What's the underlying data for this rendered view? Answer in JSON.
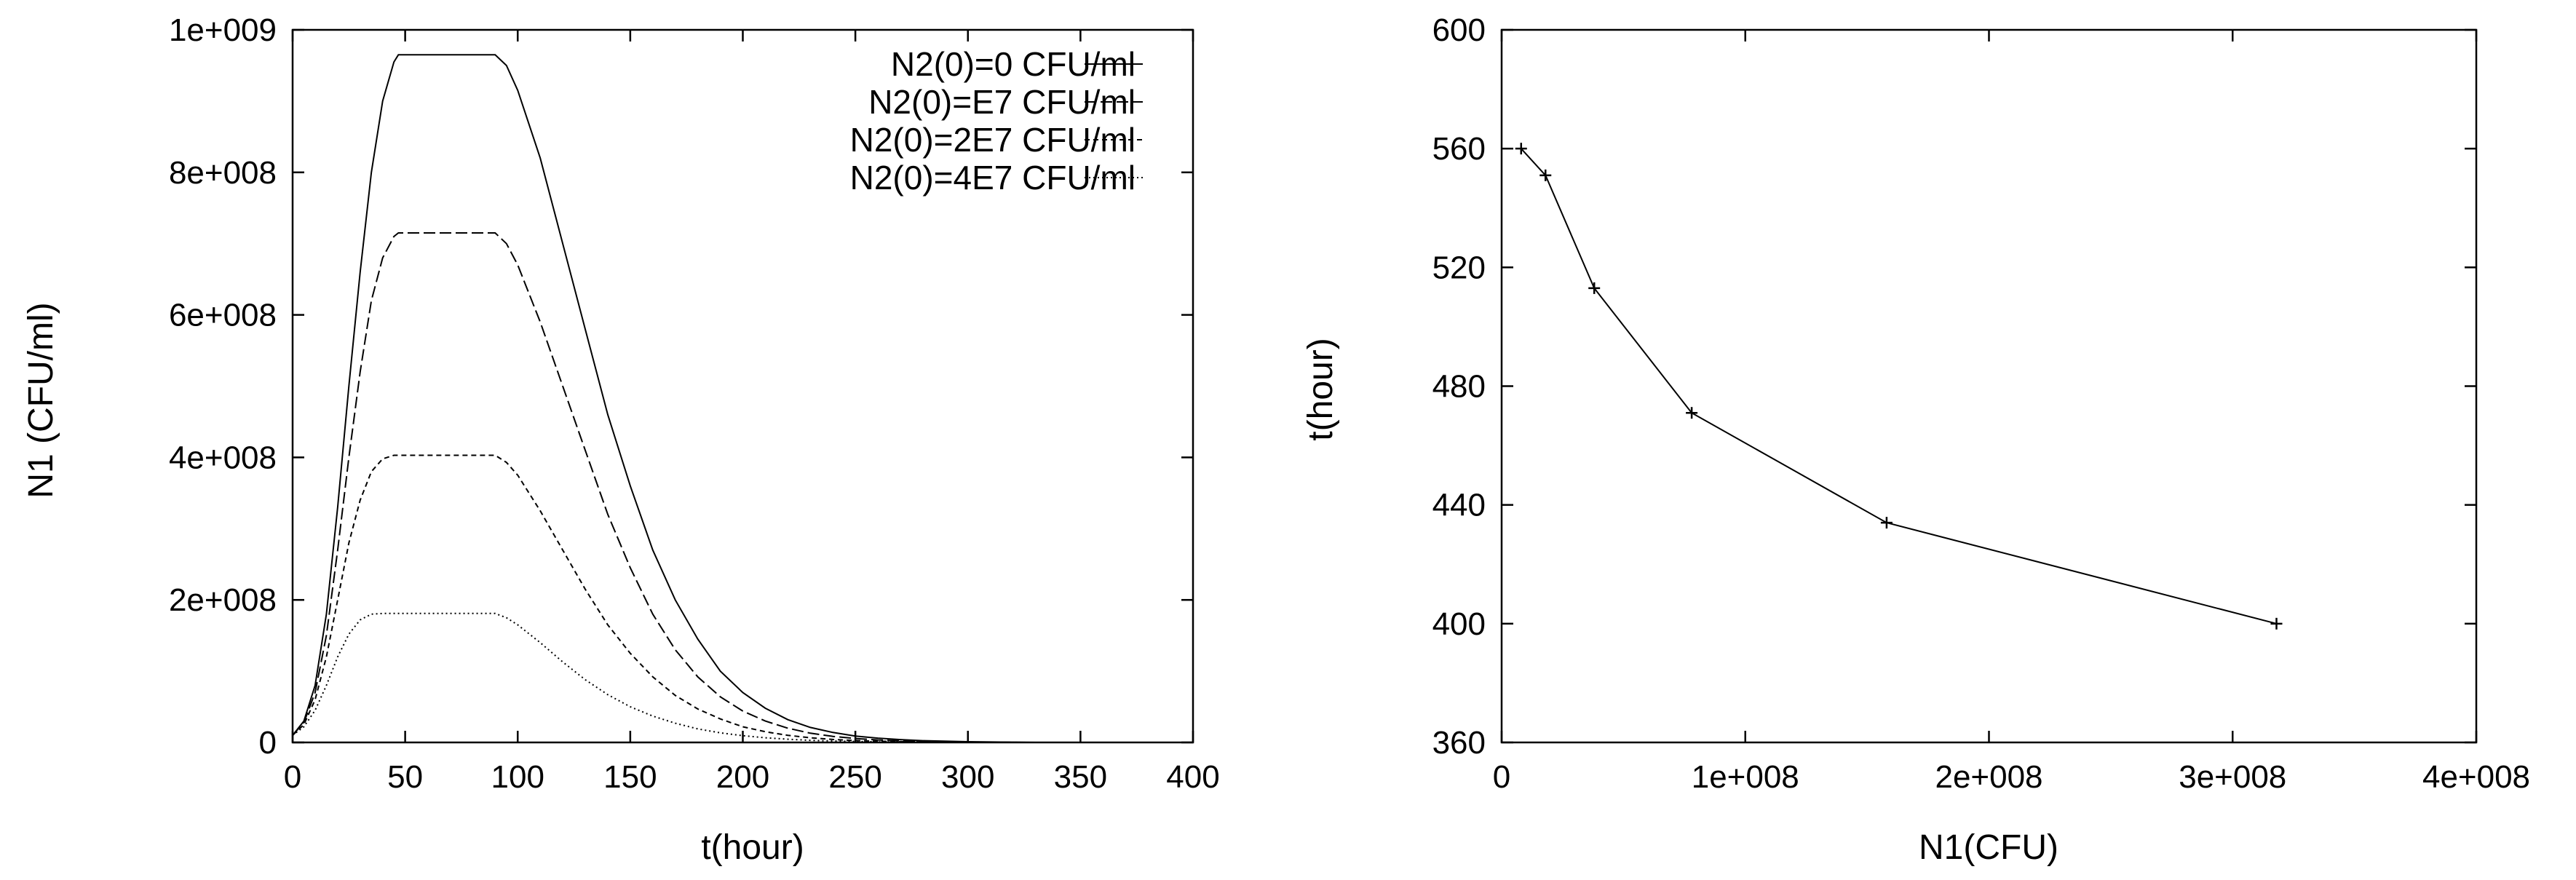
{
  "chart_data": [
    {
      "type": "line",
      "title": "",
      "xlabel": "t(hour)",
      "ylabel": "N1 (CFU/ml)",
      "xlim": [
        0,
        400
      ],
      "ylim": [
        0,
        1000000000
      ],
      "xticks": [
        0,
        50,
        100,
        150,
        200,
        250,
        300,
        350,
        400
      ],
      "xtick_labels": [
        "0",
        "50",
        "100",
        "150",
        "200",
        "250",
        "300",
        "350",
        "400"
      ],
      "yticks": [
        0,
        200000000,
        400000000,
        600000000,
        800000000,
        1000000000
      ],
      "ytick_labels": [
        "0",
        "2e+008",
        "4e+008",
        "6e+008",
        "8e+008",
        "1e+009"
      ],
      "grid": false,
      "legend_position": "top-right",
      "series": [
        {
          "name": "N2(0)=0 CFU/ml",
          "dash": "none",
          "x": [
            0,
            5,
            10,
            15,
            20,
            25,
            30,
            35,
            40,
            45,
            47,
            90,
            95,
            100,
            110,
            120,
            130,
            140,
            150,
            160,
            170,
            180,
            190,
            200,
            210,
            220,
            230,
            240,
            250,
            260,
            270,
            280,
            300,
            330
          ],
          "y": [
            10000000,
            30000000,
            80000000,
            180000000,
            330000000,
            500000000,
            660000000,
            800000000,
            900000000,
            955000000,
            965000000,
            965000000,
            950000000,
            915000000,
            820000000,
            700000000,
            580000000,
            460000000,
            360000000,
            270000000,
            200000000,
            145000000,
            100000000,
            70000000,
            48000000,
            32000000,
            21000000,
            14000000,
            9000000,
            6000000,
            4000000,
            2500000,
            1000000,
            0
          ]
        },
        {
          "name": "N2(0)=E7 CFU/ml",
          "dash": "16,6",
          "x": [
            0,
            5,
            10,
            15,
            20,
            25,
            30,
            35,
            40,
            45,
            47,
            90,
            95,
            100,
            110,
            120,
            130,
            140,
            150,
            160,
            170,
            180,
            190,
            200,
            210,
            220,
            230,
            240,
            250,
            260,
            270,
            280,
            300,
            330
          ],
          "y": [
            10000000,
            28000000,
            70000000,
            150000000,
            270000000,
            400000000,
            520000000,
            620000000,
            680000000,
            710000000,
            715000000,
            715000000,
            700000000,
            670000000,
            590000000,
            500000000,
            410000000,
            320000000,
            245000000,
            180000000,
            130000000,
            92000000,
            64000000,
            44000000,
            30000000,
            20000000,
            13000000,
            8500000,
            5500000,
            3500000,
            2200000,
            1400000,
            500000,
            0
          ]
        },
        {
          "name": "N2(0)=2E7 CFU/ml",
          "dash": "7,5",
          "x": [
            0,
            5,
            10,
            15,
            20,
            25,
            30,
            35,
            40,
            45,
            47,
            90,
            95,
            100,
            110,
            120,
            130,
            140,
            150,
            160,
            170,
            180,
            190,
            200,
            210,
            220,
            230,
            240,
            250,
            260,
            270,
            280,
            300,
            330
          ],
          "y": [
            10000000,
            25000000,
            60000000,
            120000000,
            200000000,
            280000000,
            340000000,
            380000000,
            398000000,
            403000000,
            403000000,
            403000000,
            393000000,
            375000000,
            325000000,
            270000000,
            215000000,
            165000000,
            125000000,
            92000000,
            66000000,
            47000000,
            33000000,
            22000000,
            15000000,
            10000000,
            6500000,
            4200000,
            2700000,
            1700000,
            1100000,
            700000,
            250000,
            0
          ]
        },
        {
          "name": "N2(0)=4E7 CFU/ml",
          "dash": "2,4",
          "x": [
            0,
            5,
            10,
            15,
            20,
            25,
            30,
            35,
            40,
            45,
            47,
            90,
            95,
            100,
            110,
            120,
            130,
            140,
            150,
            160,
            170,
            180,
            190,
            200,
            210,
            220,
            230,
            240,
            250,
            260,
            270,
            280,
            300,
            330
          ],
          "y": [
            10000000,
            22000000,
            45000000,
            80000000,
            120000000,
            152000000,
            172000000,
            180000000,
            181000000,
            181000000,
            181000000,
            181000000,
            175000000,
            165000000,
            140000000,
            113000000,
            88000000,
            67000000,
            50000000,
            37000000,
            27000000,
            19000000,
            13500000,
            9500000,
            6500000,
            4500000,
            3000000,
            2000000,
            1300000,
            850000,
            550000,
            350000,
            120000,
            0
          ]
        }
      ]
    },
    {
      "type": "line",
      "title": "",
      "xlabel": "N1(CFU)",
      "ylabel": "t(hour)",
      "xlim": [
        0,
        400000000
      ],
      "ylim": [
        360,
        600
      ],
      "xticks": [
        0,
        100000000,
        200000000,
        300000000,
        400000000
      ],
      "xtick_labels": [
        "0",
        "1e+008",
        "2e+008",
        "3e+008",
        "4e+008"
      ],
      "yticks": [
        360,
        400,
        440,
        480,
        520,
        560,
        600
      ],
      "ytick_labels": [
        "360",
        "400",
        "440",
        "480",
        "520",
        "560",
        "600"
      ],
      "grid": false,
      "markers": "plus",
      "series": [
        {
          "x": [
            8000000,
            18000000,
            38000000,
            78000000,
            158000000,
            318000000
          ],
          "y": [
            560,
            551,
            513,
            471,
            434,
            400
          ]
        }
      ]
    }
  ]
}
